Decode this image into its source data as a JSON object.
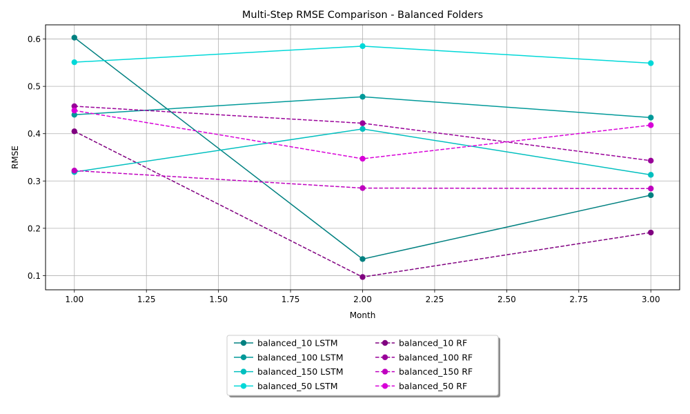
{
  "chart_data": {
    "type": "line",
    "title": "Multi-Step RMSE Comparison - Balanced Folders",
    "xlabel": "Month",
    "ylabel": "RMSE",
    "xlim": [
      0.9,
      3.1
    ],
    "ylim": [
      0.07,
      0.63
    ],
    "xticks": [
      "1.00",
      "1.25",
      "1.50",
      "1.75",
      "2.00",
      "2.25",
      "2.50",
      "2.75",
      "3.00"
    ],
    "xtick_values": [
      1.0,
      1.25,
      1.5,
      1.75,
      2.0,
      2.25,
      2.5,
      2.75,
      3.0
    ],
    "yticks": [
      "0.1",
      "0.2",
      "0.3",
      "0.4",
      "0.5",
      "0.6"
    ],
    "ytick_values": [
      0.1,
      0.2,
      0.3,
      0.4,
      0.5,
      0.6
    ],
    "grid": true,
    "legend_position": "bottom-center",
    "x": [
      1,
      2,
      3
    ],
    "series": [
      {
        "name": "balanced_10 LSTM",
        "values": [
          0.603,
          0.135,
          0.27
        ],
        "color": "#008080",
        "dash": "solid"
      },
      {
        "name": "balanced_10 RF",
        "values": [
          0.405,
          0.097,
          0.191
        ],
        "color": "#800080",
        "dash": "dashed"
      },
      {
        "name": "balanced_100 LSTM",
        "values": [
          0.44,
          0.478,
          0.434
        ],
        "color": "#009999",
        "dash": "solid"
      },
      {
        "name": "balanced_100 RF",
        "values": [
          0.458,
          0.422,
          0.343
        ],
        "color": "#990099",
        "dash": "dashed"
      },
      {
        "name": "balanced_150 LSTM",
        "values": [
          0.319,
          0.41,
          0.313
        ],
        "color": "#00bfbf",
        "dash": "solid"
      },
      {
        "name": "balanced_150 RF",
        "values": [
          0.322,
          0.285,
          0.284
        ],
        "color": "#bf00bf",
        "dash": "dashed"
      },
      {
        "name": "balanced_50 LSTM",
        "values": [
          0.551,
          0.585,
          0.549
        ],
        "color": "#00d8d8",
        "dash": "solid"
      },
      {
        "name": "balanced_50 RF",
        "values": [
          0.449,
          0.347,
          0.418
        ],
        "color": "#d800d8",
        "dash": "dashed"
      }
    ]
  }
}
